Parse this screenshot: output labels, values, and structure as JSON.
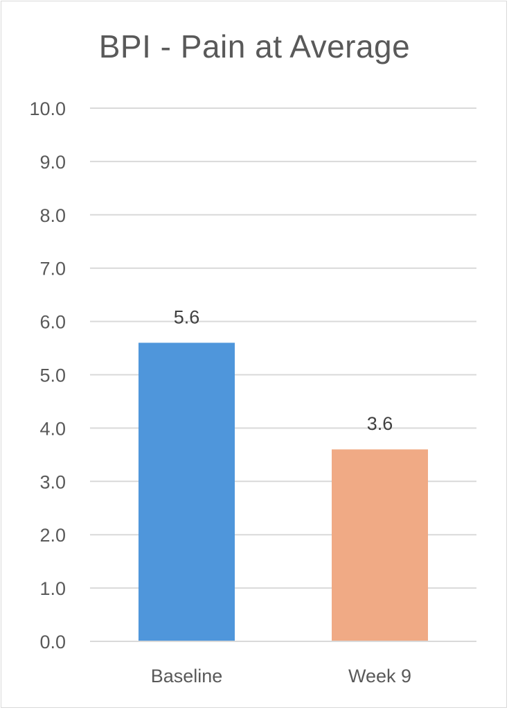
{
  "chart_data": {
    "type": "bar",
    "title": "BPI - Pain at Average",
    "categories": [
      "Baseline",
      "Week 9"
    ],
    "values": [
      5.6,
      3.6
    ],
    "data_labels": [
      "5.6",
      "3.6"
    ],
    "bar_colors": [
      "#4f96db",
      "#f0aa85"
    ],
    "ylim": [
      0,
      10
    ],
    "ytick_step": 1,
    "ytick_labels": [
      "0.0",
      "1.0",
      "2.0",
      "3.0",
      "4.0",
      "5.0",
      "6.0",
      "7.0",
      "8.0",
      "9.0",
      "10.0"
    ],
    "xlabel": "",
    "ylabel": "",
    "grid": true,
    "legend": "none",
    "gridline_color": "#d9d9d9"
  }
}
